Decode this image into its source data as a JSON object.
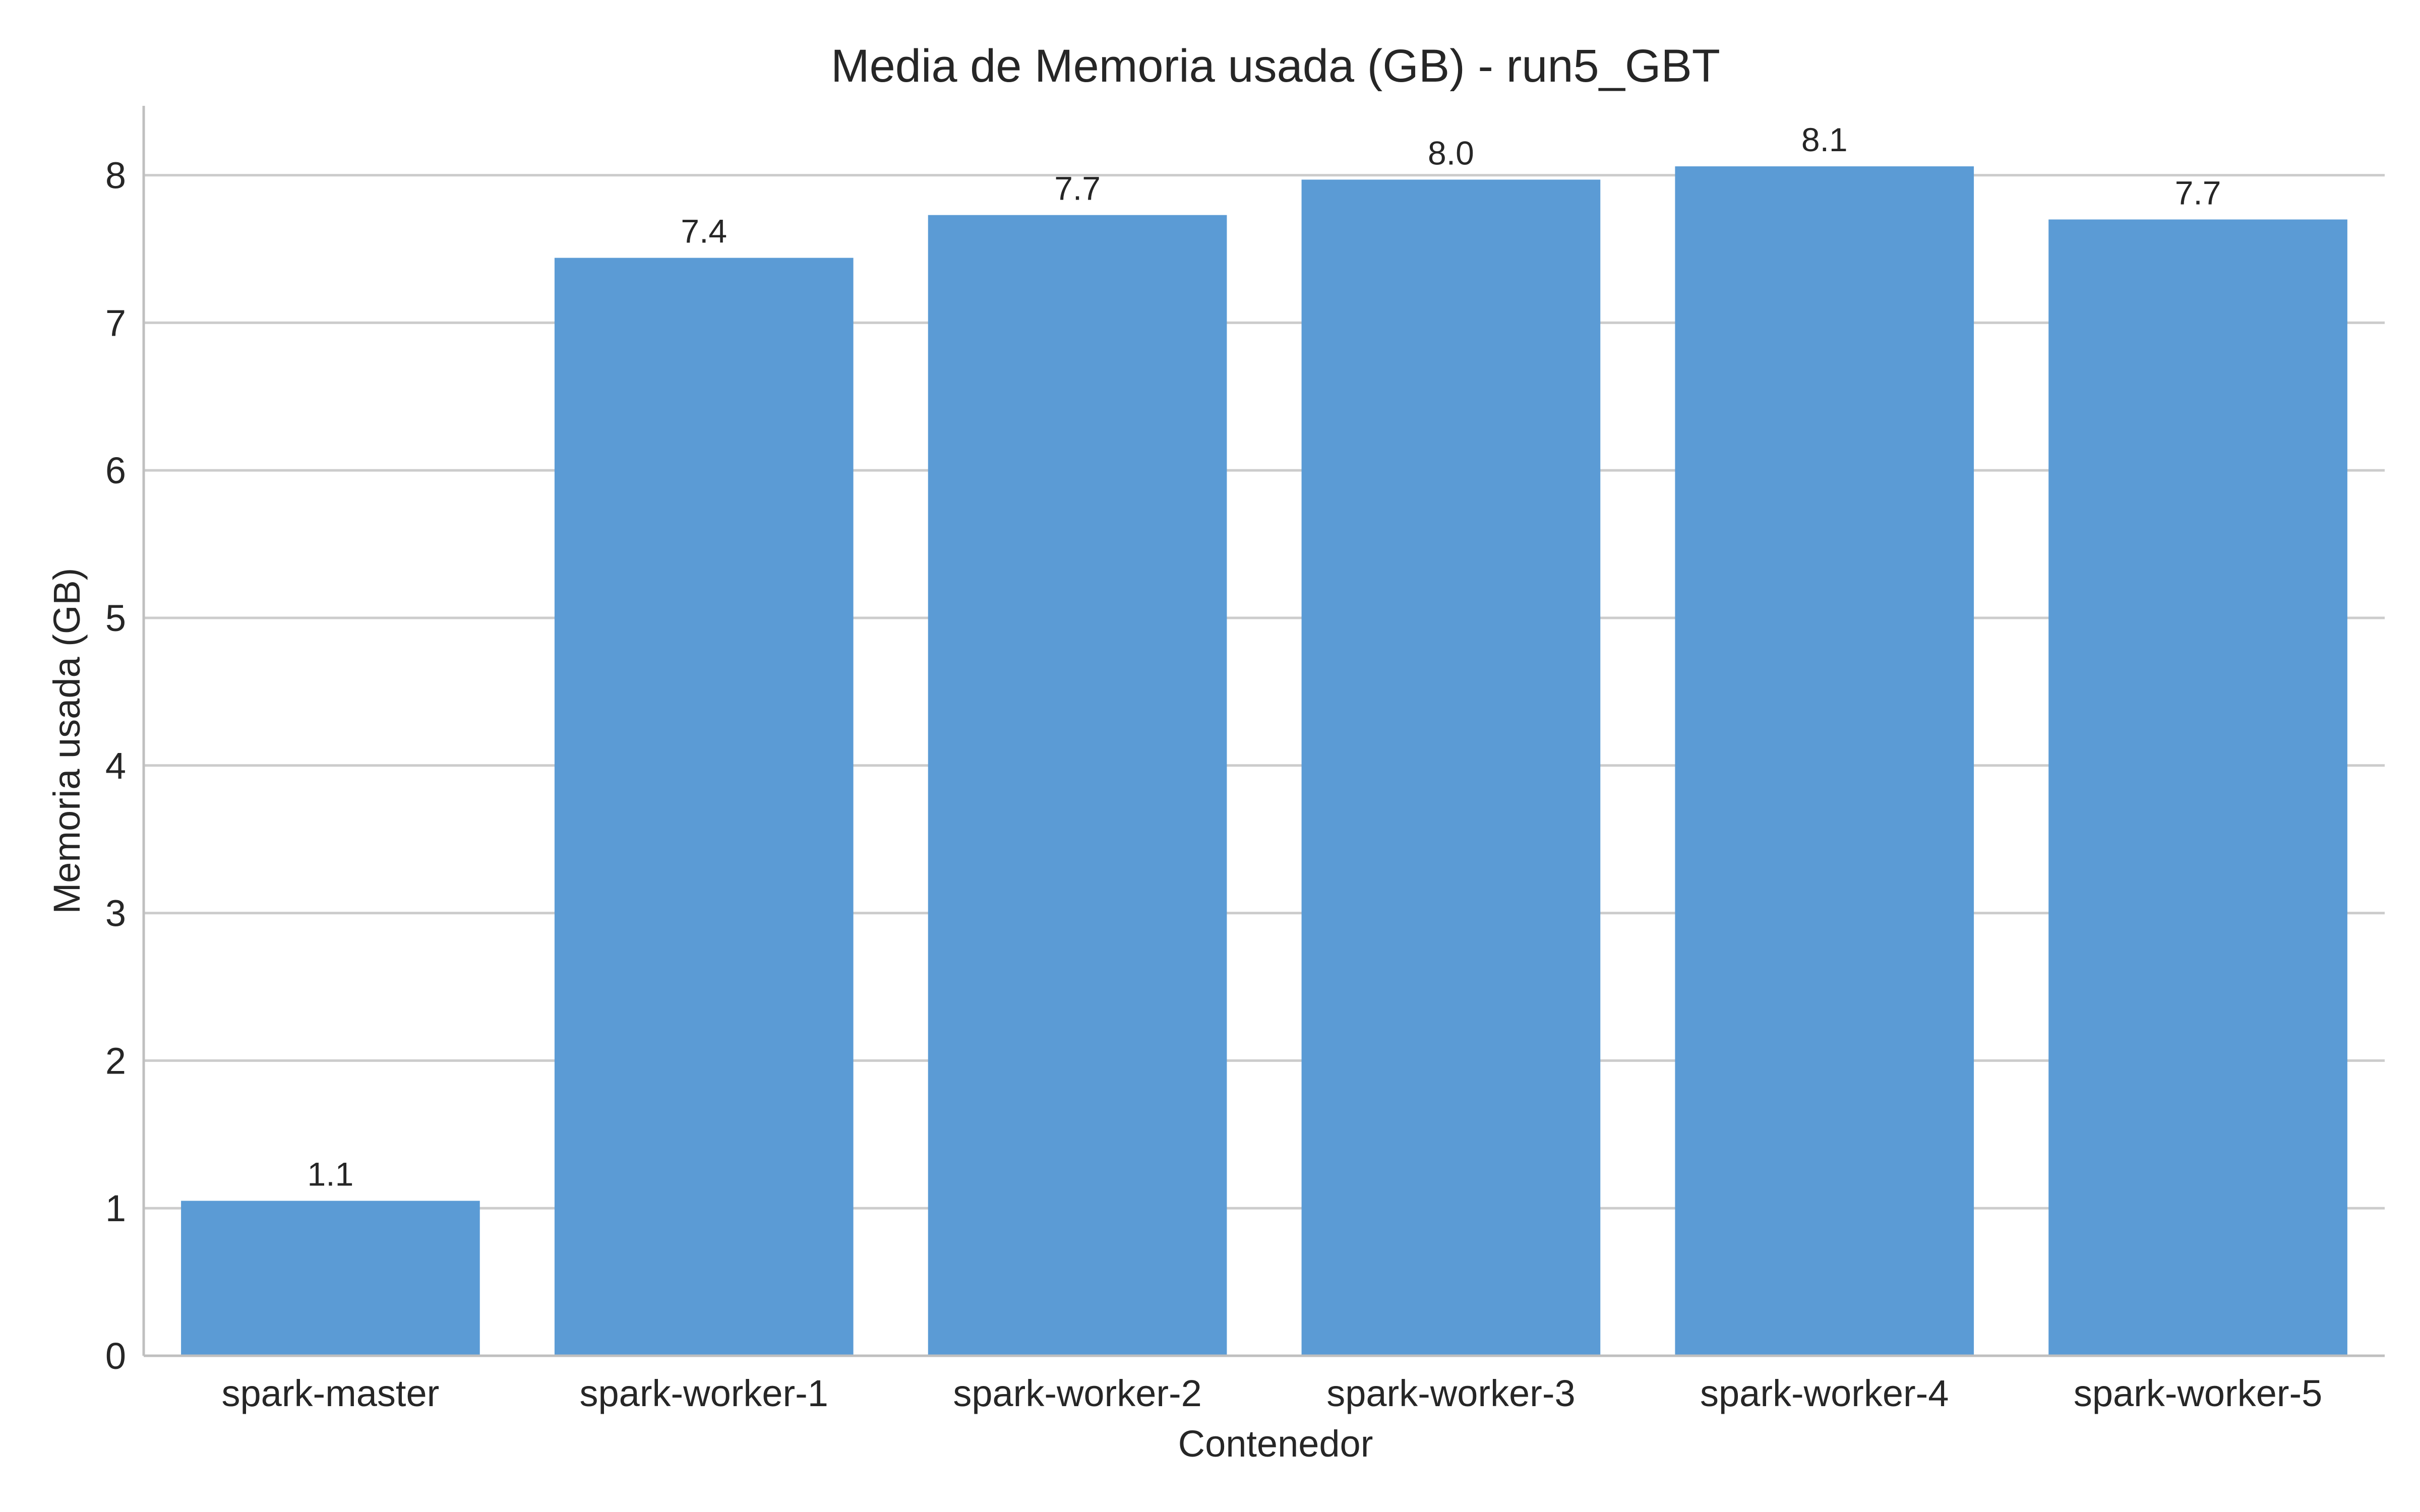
{
  "chart_data": {
    "type": "bar",
    "title": "Media de Memoria usada (GB) - run5_GBT",
    "xlabel": "Contenedor",
    "ylabel": "Memoria usada (GB)",
    "categories": [
      "spark-master",
      "spark-worker-1",
      "spark-worker-2",
      "spark-worker-3",
      "spark-worker-4",
      "spark-worker-5"
    ],
    "values": [
      1.05,
      7.44,
      7.73,
      7.97,
      8.06,
      7.7
    ],
    "data_labels": [
      "1.1",
      "7.4",
      "7.7",
      "8.0",
      "8.1",
      "7.7"
    ],
    "ylim": [
      0,
      8.47
    ],
    "yticks": [
      0,
      1,
      2,
      3,
      4,
      5,
      6,
      7,
      8
    ],
    "grid": "horizontal",
    "bar_color": "#5b9bd5",
    "legend": "none"
  }
}
